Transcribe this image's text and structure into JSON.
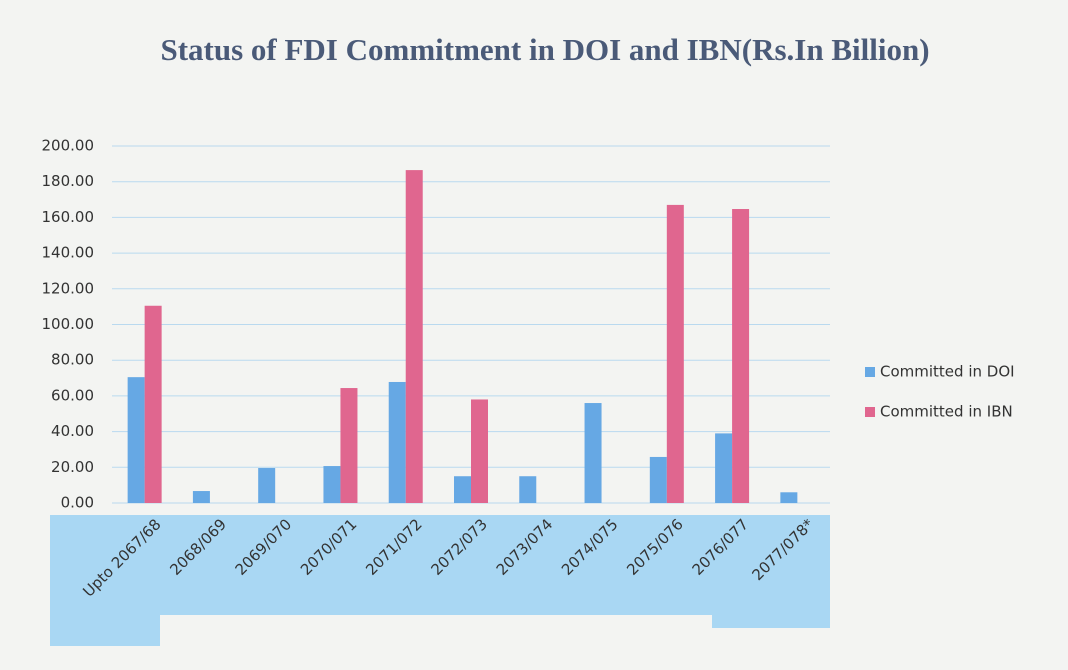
{
  "chart_data": {
    "type": "bar",
    "title": "Status of FDI Commitment in DOI and IBN(Rs.In Billion)",
    "categories": [
      "Upto 2067/68",
      "2068/069",
      "2069/070",
      "2070/071",
      "2071/072",
      "2072/073",
      "2073/074",
      "2074/075",
      "2075/076",
      "2076/077",
      "2077/078*"
    ],
    "series": [
      {
        "name": "Committed in DOI",
        "color": "#66a8e4",
        "values": [
          70.5,
          6.7,
          19.6,
          20.7,
          67.8,
          15,
          15,
          56,
          25.8,
          39,
          6
        ]
      },
      {
        "name": "Committed in IBN",
        "color": "#e0668f",
        "values": [
          110.5,
          null,
          null,
          64.4,
          186.5,
          58,
          null,
          null,
          167,
          164.7,
          null
        ]
      }
    ],
    "ylim": [
      0,
      200
    ],
    "yticks": [
      {
        "value": 0,
        "label": "0.00"
      },
      {
        "value": 20,
        "label": "20.00"
      },
      {
        "value": 40,
        "label": "40.00"
      },
      {
        "value": 60,
        "label": "60.00"
      },
      {
        "value": 80,
        "label": "80.00"
      },
      {
        "value": 100,
        "label": "100.00"
      },
      {
        "value": 120,
        "label": "120.00"
      },
      {
        "value": 140,
        "label": "140.00"
      },
      {
        "value": 160,
        "label": "160.00"
      },
      {
        "value": 180,
        "label": "180.00"
      },
      {
        "value": 200,
        "label": "200.00"
      }
    ],
    "grid": true,
    "legend": "right"
  }
}
